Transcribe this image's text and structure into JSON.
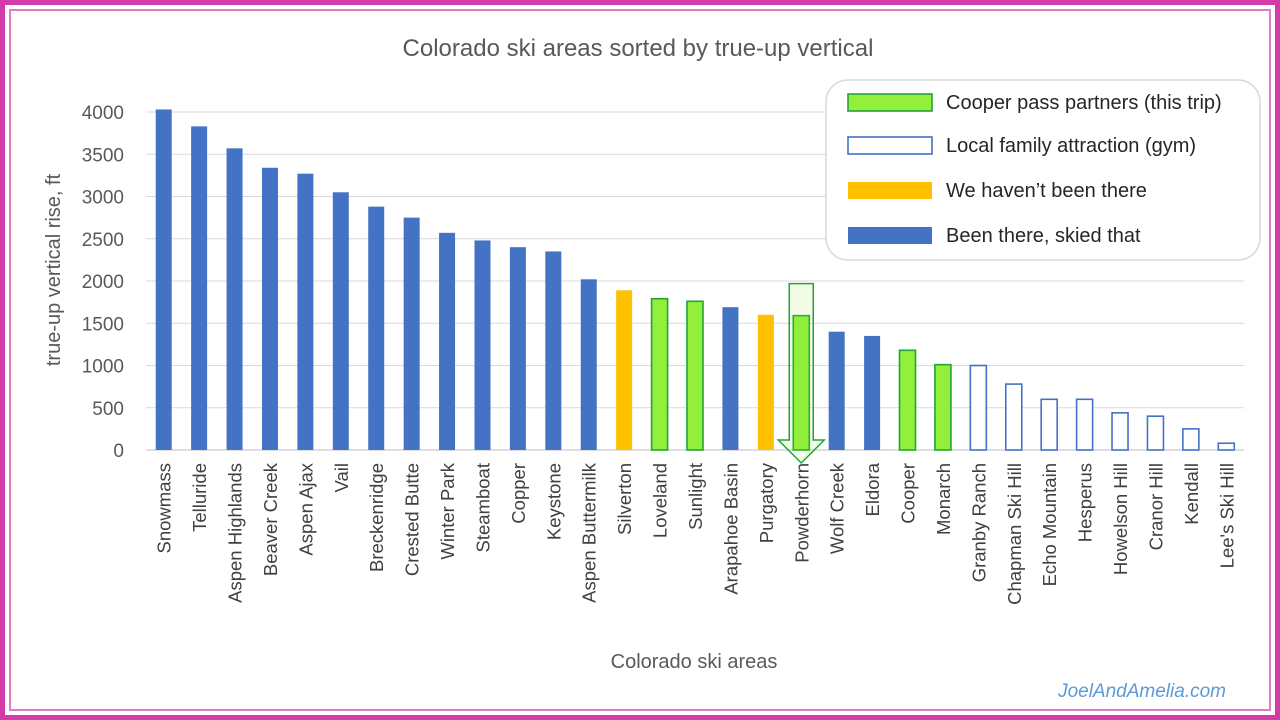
{
  "chart_data": {
    "type": "bar",
    "title": "Colorado ski areas sorted by true-up vertical",
    "xlabel": "Colorado ski areas",
    "ylabel": "true-up vertical rise, ft",
    "ylim": [
      0,
      4000
    ],
    "yticks": [
      0,
      500,
      1000,
      1500,
      2000,
      2500,
      3000,
      3500,
      4000
    ],
    "grid": true,
    "legend_position": "top-right",
    "categories": [
      "Snowmass",
      "Telluride",
      "Aspen Highlands",
      "Beaver Creek",
      "Aspen Ajax",
      "Vail",
      "Breckenridge",
      "Crested Butte",
      "Winter Park",
      "Steamboat",
      "Copper",
      "Keystone",
      "Aspen Buttermilk",
      "Silverton",
      "Loveland",
      "Sunlight",
      "Arapahoe Basin",
      "Purgatory",
      "Powderhorn",
      "Wolf Creek",
      "Eldora",
      "Cooper",
      "Monarch",
      "Granby Ranch",
      "Chapman Ski Hill",
      "Echo Mountain",
      "Hesperus",
      "Howelson Hill",
      "Cranor Hill",
      "Kendall",
      "Lee's Ski Hill"
    ],
    "values": [
      4030,
      3830,
      3570,
      3340,
      3270,
      3050,
      2880,
      2750,
      2570,
      2480,
      2400,
      2350,
      2020,
      1890,
      1790,
      1760,
      1690,
      1600,
      1590,
      1400,
      1350,
      1180,
      1010,
      1000,
      780,
      600,
      600,
      440,
      400,
      250,
      80
    ],
    "groups": [
      "been",
      "been",
      "been",
      "been",
      "been",
      "been",
      "been",
      "been",
      "been",
      "been",
      "been",
      "been",
      "been",
      "not",
      "cooper",
      "cooper",
      "been",
      "not",
      "cooper",
      "been",
      "been",
      "cooper",
      "cooper",
      "local",
      "local",
      "local",
      "local",
      "local",
      "local",
      "local",
      "local"
    ],
    "series": [
      {
        "key": "cooper",
        "name": "Cooper pass partners (this trip)",
        "fill": "#92f03a",
        "stroke": "#22a33a",
        "style": "solid"
      },
      {
        "key": "local",
        "name": "Local family attraction (gym)",
        "fill": "#ffffff",
        "stroke": "#4472c4",
        "style": "outline"
      },
      {
        "key": "not",
        "name": "We haven’t been there",
        "fill": "#ffc000",
        "stroke": "#ffc000",
        "style": "solid"
      },
      {
        "key": "been",
        "name": "Been there, skied that",
        "fill": "#4472c4",
        "stroke": "#4472c4",
        "style": "solid"
      }
    ],
    "annotations": [
      {
        "type": "down-arrow",
        "target": "Powderhorn",
        "color": "#22a33a"
      }
    ]
  },
  "watermark": "JoelAndAmelia.com"
}
